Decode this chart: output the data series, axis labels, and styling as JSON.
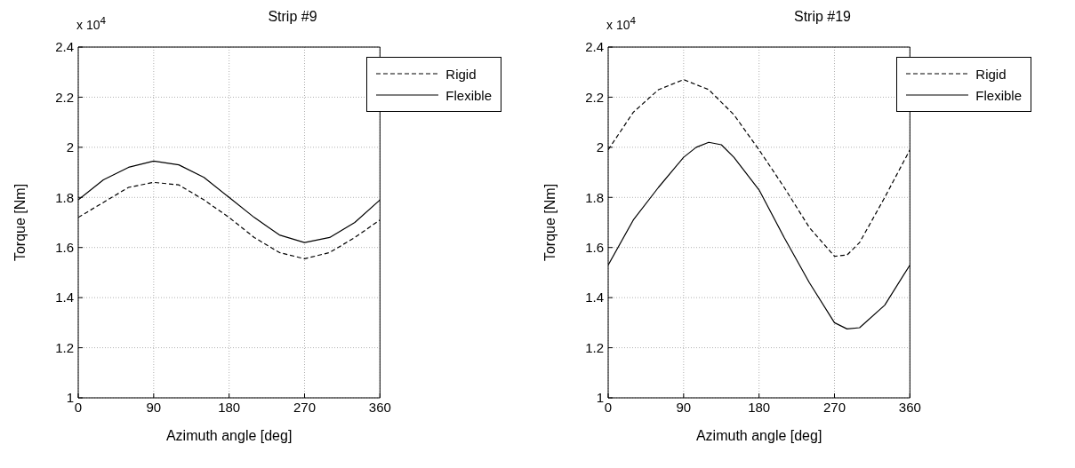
{
  "chart_data": [
    {
      "type": "line",
      "title": "Strip #9",
      "xlabel": "Azimuth angle [deg]",
      "ylabel": "Torque [Nm]",
      "annotations": [
        "x 10$^{4}$"
      ],
      "xlim": [
        0,
        360
      ],
      "xticks": [
        0,
        90,
        180,
        270,
        360
      ],
      "ylim": [
        1,
        2.4
      ],
      "yticks": [
        1,
        1.2,
        1.4,
        1.6,
        1.8,
        2,
        2.2,
        2.4
      ],
      "grid": true,
      "legend": "top right",
      "marker": "none",
      "series": [
        {
          "name": "Rigid",
          "color": "#000000",
          "line_style": "dashed",
          "x": [
            0,
            30,
            60,
            90,
            120,
            150,
            180,
            210,
            240,
            270,
            300,
            330,
            360
          ],
          "values": [
            1.72,
            1.78,
            1.84,
            1.86,
            1.85,
            1.79,
            1.72,
            1.64,
            1.58,
            1.555,
            1.58,
            1.64,
            1.71
          ]
        },
        {
          "name": "Flexible",
          "color": "#000000",
          "line_style": "solid",
          "x": [
            0,
            30,
            60,
            90,
            120,
            150,
            180,
            210,
            240,
            270,
            300,
            330,
            360
          ],
          "values": [
            1.79,
            1.87,
            1.92,
            1.945,
            1.93,
            1.88,
            1.8,
            1.72,
            1.65,
            1.62,
            1.64,
            1.7,
            1.79
          ]
        }
      ]
    },
    {
      "type": "line",
      "title": "Strip #19",
      "xlabel": "Azimuth angle [deg]",
      "ylabel": "Torque [Nm]",
      "annotations": [
        "x 10$^{4}$"
      ],
      "xlim": [
        0,
        360
      ],
      "xticks": [
        0,
        90,
        180,
        270,
        360
      ],
      "ylim": [
        1,
        2.4
      ],
      "yticks": [
        1,
        1.2,
        1.4,
        1.6,
        1.8,
        2,
        2.2,
        2.4
      ],
      "grid": true,
      "legend": "top right",
      "marker": "none",
      "series": [
        {
          "name": "Rigid",
          "color": "#000000",
          "line_style": "dashed",
          "x": [
            0,
            30,
            60,
            90,
            120,
            150,
            180,
            210,
            240,
            270,
            285,
            300,
            330,
            360
          ],
          "values": [
            1.99,
            2.14,
            2.23,
            2.27,
            2.23,
            2.13,
            1.99,
            1.84,
            1.68,
            1.565,
            1.57,
            1.62,
            1.8,
            1.99
          ]
        },
        {
          "name": "Flexible",
          "color": "#000000",
          "line_style": "solid",
          "x": [
            0,
            30,
            60,
            90,
            105,
            120,
            135,
            150,
            180,
            210,
            240,
            270,
            285,
            300,
            330,
            360
          ],
          "values": [
            1.53,
            1.71,
            1.84,
            1.96,
            2.0,
            2.02,
            2.01,
            1.96,
            1.83,
            1.64,
            1.46,
            1.3,
            1.275,
            1.28,
            1.37,
            1.53
          ]
        }
      ]
    }
  ]
}
